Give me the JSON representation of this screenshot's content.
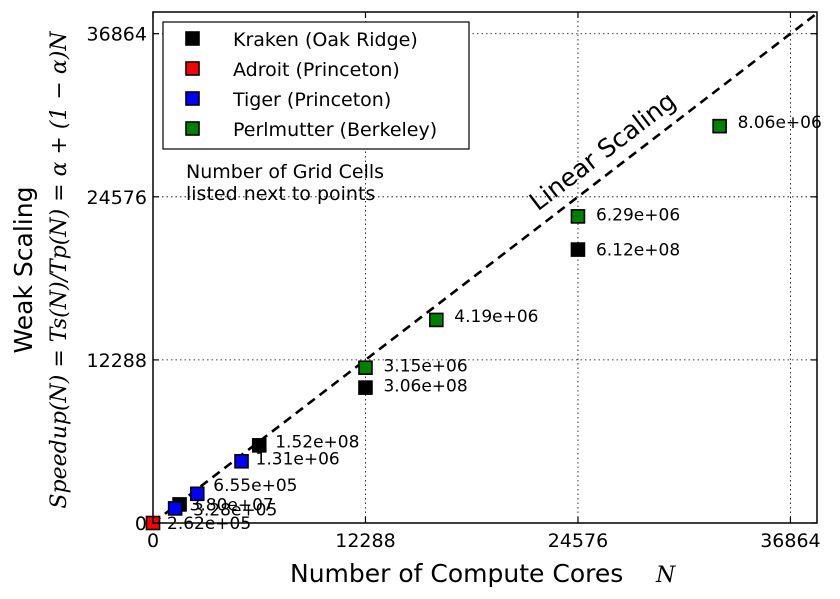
{
  "chart_data": {
    "type": "scatter",
    "xlabel": "Number of Compute Cores",
    "xlabel_var": "N",
    "ylabel_line1": "Weak Scaling",
    "ylabel_line2": "Speedup(N) = Ts(N)/Tp(N) = α + (1 − α)N",
    "xlim": [
      0,
      38400
    ],
    "ylim": [
      0,
      38500
    ],
    "xticks": [
      0,
      12288,
      24576,
      36864
    ],
    "yticks": [
      0,
      12288,
      24576,
      36864
    ],
    "xtick_labels": [
      "0",
      "12288",
      "24576",
      "36864"
    ],
    "ytick_labels": [
      "0",
      "12288",
      "24576",
      "36864"
    ],
    "grid": true,
    "legend_position": "top-left",
    "reference_line": {
      "label": "Linear Scaling",
      "x": [
        0,
        38400
      ],
      "y": [
        0,
        38400
      ],
      "style": "dashed"
    },
    "note_line1": "Number of Grid Cells",
    "note_line2": "listed next to points",
    "series": [
      {
        "name": "Kraken (Oak Ridge)",
        "color": "#000000",
        "points": [
          {
            "x": 1536,
            "y": 1400,
            "label": "3.80e+07"
          },
          {
            "x": 6144,
            "y": 5850,
            "label": "1.52e+08"
          },
          {
            "x": 12288,
            "y": 10200,
            "label": "3.06e+08"
          },
          {
            "x": 24576,
            "y": 20600,
            "label": "6.12e+08"
          }
        ]
      },
      {
        "name": "Adroit (Princeton)",
        "color": "#ff0000",
        "points": [
          {
            "x": 0,
            "y": 0,
            "label": "2.62e+05"
          }
        ]
      },
      {
        "name": "Tiger (Princeton)",
        "color": "#0000ff",
        "points": [
          {
            "x": 1280,
            "y": 1100,
            "label": "3.28e+05"
          },
          {
            "x": 2560,
            "y": 2200,
            "label": "6.55e+05"
          },
          {
            "x": 5120,
            "y": 4650,
            "label": "1.31e+06"
          }
        ]
      },
      {
        "name": "Perlmutter (Berkeley)",
        "color": "#008000",
        "points": [
          {
            "x": 12288,
            "y": 11700,
            "label": "3.15e+06"
          },
          {
            "x": 16384,
            "y": 15300,
            "label": "4.19e+06"
          },
          {
            "x": 24576,
            "y": 23100,
            "label": "6.29e+06"
          },
          {
            "x": 32768,
            "y": 29900,
            "label": "8.06e+06"
          }
        ]
      }
    ]
  }
}
